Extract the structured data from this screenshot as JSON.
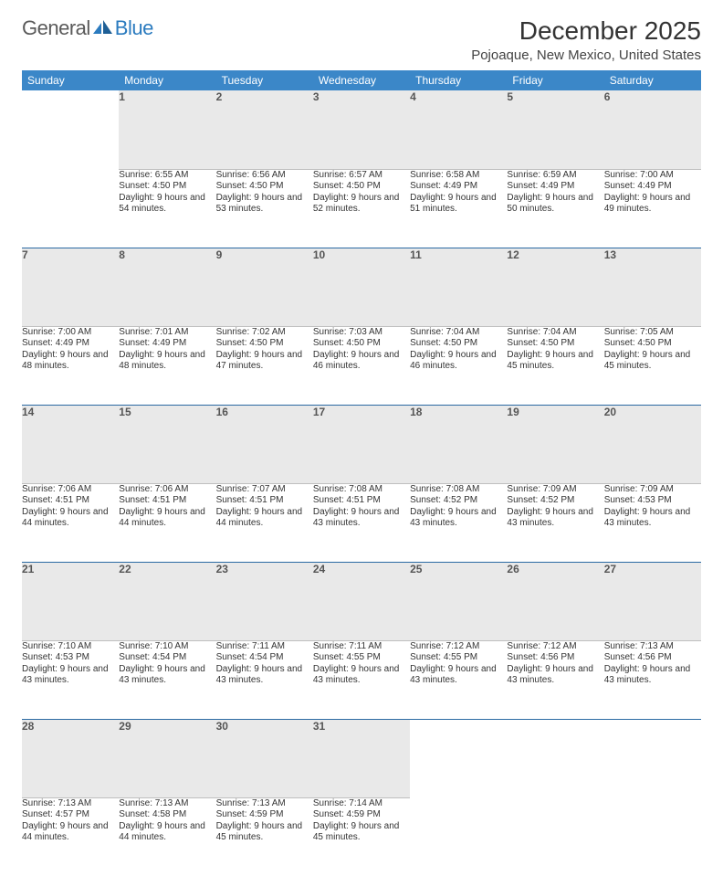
{
  "brand": {
    "part1": "General",
    "part2": "Blue"
  },
  "title": "December 2025",
  "location": "Pojoaque, New Mexico, United States",
  "colors": {
    "header_bg": "#3b87c8",
    "header_fg": "#ffffff",
    "daynum_bg": "#e9e9e9",
    "row_divider": "#2b6aa3",
    "logo_accent": "#2b7bbf"
  },
  "weekdays": [
    "Sunday",
    "Monday",
    "Tuesday",
    "Wednesday",
    "Thursday",
    "Friday",
    "Saturday"
  ],
  "labels": {
    "sunrise": "Sunrise:",
    "sunset": "Sunset:",
    "daylight": "Daylight:"
  },
  "start_offset": 1,
  "days": [
    {
      "n": 1,
      "sunrise": "6:55 AM",
      "sunset": "4:50 PM",
      "daylight": "9 hours and 54 minutes."
    },
    {
      "n": 2,
      "sunrise": "6:56 AM",
      "sunset": "4:50 PM",
      "daylight": "9 hours and 53 minutes."
    },
    {
      "n": 3,
      "sunrise": "6:57 AM",
      "sunset": "4:50 PM",
      "daylight": "9 hours and 52 minutes."
    },
    {
      "n": 4,
      "sunrise": "6:58 AM",
      "sunset": "4:49 PM",
      "daylight": "9 hours and 51 minutes."
    },
    {
      "n": 5,
      "sunrise": "6:59 AM",
      "sunset": "4:49 PM",
      "daylight": "9 hours and 50 minutes."
    },
    {
      "n": 6,
      "sunrise": "7:00 AM",
      "sunset": "4:49 PM",
      "daylight": "9 hours and 49 minutes."
    },
    {
      "n": 7,
      "sunrise": "7:00 AM",
      "sunset": "4:49 PM",
      "daylight": "9 hours and 48 minutes."
    },
    {
      "n": 8,
      "sunrise": "7:01 AM",
      "sunset": "4:49 PM",
      "daylight": "9 hours and 48 minutes."
    },
    {
      "n": 9,
      "sunrise": "7:02 AM",
      "sunset": "4:50 PM",
      "daylight": "9 hours and 47 minutes."
    },
    {
      "n": 10,
      "sunrise": "7:03 AM",
      "sunset": "4:50 PM",
      "daylight": "9 hours and 46 minutes."
    },
    {
      "n": 11,
      "sunrise": "7:04 AM",
      "sunset": "4:50 PM",
      "daylight": "9 hours and 46 minutes."
    },
    {
      "n": 12,
      "sunrise": "7:04 AM",
      "sunset": "4:50 PM",
      "daylight": "9 hours and 45 minutes."
    },
    {
      "n": 13,
      "sunrise": "7:05 AM",
      "sunset": "4:50 PM",
      "daylight": "9 hours and 45 minutes."
    },
    {
      "n": 14,
      "sunrise": "7:06 AM",
      "sunset": "4:51 PM",
      "daylight": "9 hours and 44 minutes."
    },
    {
      "n": 15,
      "sunrise": "7:06 AM",
      "sunset": "4:51 PM",
      "daylight": "9 hours and 44 minutes."
    },
    {
      "n": 16,
      "sunrise": "7:07 AM",
      "sunset": "4:51 PM",
      "daylight": "9 hours and 44 minutes."
    },
    {
      "n": 17,
      "sunrise": "7:08 AM",
      "sunset": "4:51 PM",
      "daylight": "9 hours and 43 minutes."
    },
    {
      "n": 18,
      "sunrise": "7:08 AM",
      "sunset": "4:52 PM",
      "daylight": "9 hours and 43 minutes."
    },
    {
      "n": 19,
      "sunrise": "7:09 AM",
      "sunset": "4:52 PM",
      "daylight": "9 hours and 43 minutes."
    },
    {
      "n": 20,
      "sunrise": "7:09 AM",
      "sunset": "4:53 PM",
      "daylight": "9 hours and 43 minutes."
    },
    {
      "n": 21,
      "sunrise": "7:10 AM",
      "sunset": "4:53 PM",
      "daylight": "9 hours and 43 minutes."
    },
    {
      "n": 22,
      "sunrise": "7:10 AM",
      "sunset": "4:54 PM",
      "daylight": "9 hours and 43 minutes."
    },
    {
      "n": 23,
      "sunrise": "7:11 AM",
      "sunset": "4:54 PM",
      "daylight": "9 hours and 43 minutes."
    },
    {
      "n": 24,
      "sunrise": "7:11 AM",
      "sunset": "4:55 PM",
      "daylight": "9 hours and 43 minutes."
    },
    {
      "n": 25,
      "sunrise": "7:12 AM",
      "sunset": "4:55 PM",
      "daylight": "9 hours and 43 minutes."
    },
    {
      "n": 26,
      "sunrise": "7:12 AM",
      "sunset": "4:56 PM",
      "daylight": "9 hours and 43 minutes."
    },
    {
      "n": 27,
      "sunrise": "7:13 AM",
      "sunset": "4:56 PM",
      "daylight": "9 hours and 43 minutes."
    },
    {
      "n": 28,
      "sunrise": "7:13 AM",
      "sunset": "4:57 PM",
      "daylight": "9 hours and 44 minutes."
    },
    {
      "n": 29,
      "sunrise": "7:13 AM",
      "sunset": "4:58 PM",
      "daylight": "9 hours and 44 minutes."
    },
    {
      "n": 30,
      "sunrise": "7:13 AM",
      "sunset": "4:59 PM",
      "daylight": "9 hours and 45 minutes."
    },
    {
      "n": 31,
      "sunrise": "7:14 AM",
      "sunset": "4:59 PM",
      "daylight": "9 hours and 45 minutes."
    }
  ]
}
